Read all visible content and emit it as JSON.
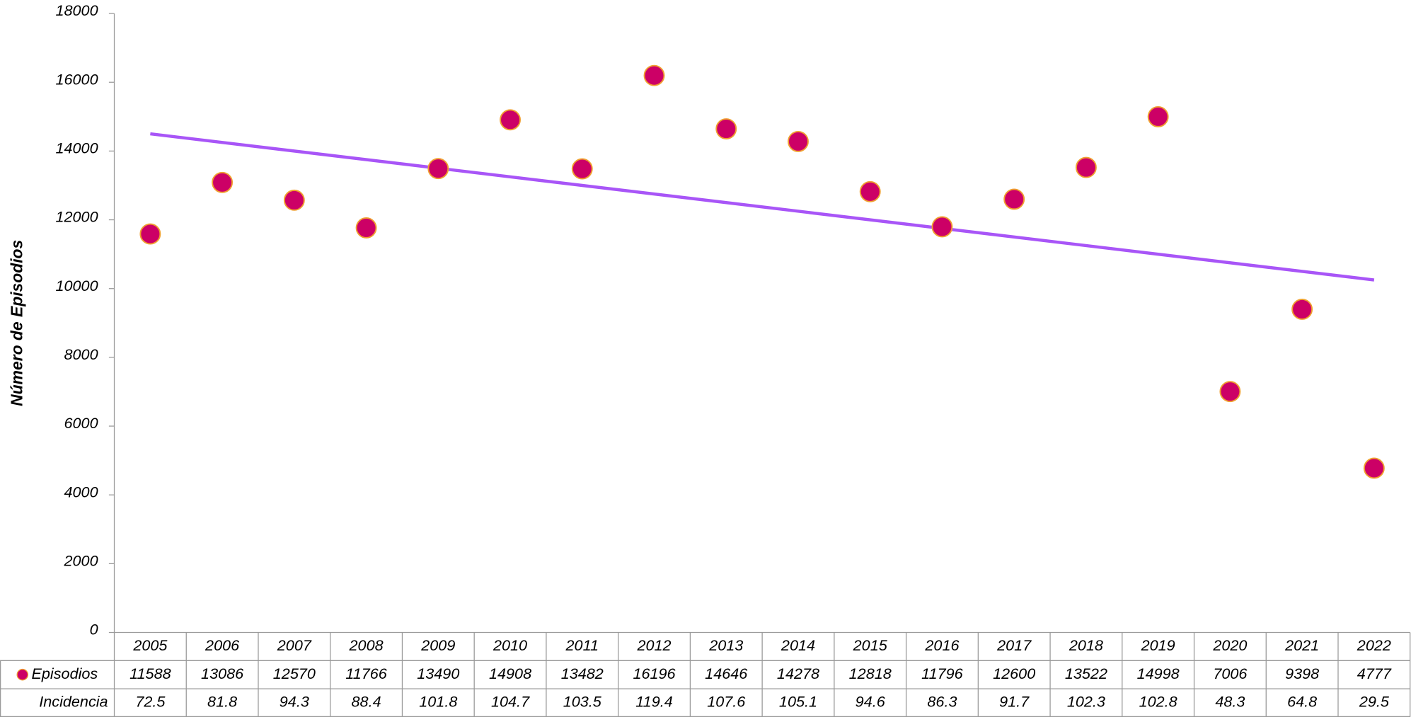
{
  "chart_data": {
    "type": "scatter",
    "y_label": "Número de Episodios",
    "categories": [
      "2005",
      "2006",
      "2007",
      "2008",
      "2009",
      "2010",
      "2011",
      "2012",
      "2013",
      "2014",
      "2015",
      "2016",
      "2017",
      "2018",
      "2019",
      "2020",
      "2021",
      "2022"
    ],
    "series": [
      {
        "name": "Episodios",
        "color": "#cc0066",
        "edge_color": "#f0a030",
        "values": [
          11588,
          13086,
          12570,
          11766,
          13490,
          14908,
          13482,
          16196,
          14646,
          14278,
          12818,
          11796,
          12600,
          13522,
          14998,
          7006,
          9398,
          4777
        ]
      }
    ],
    "table_rows": [
      {
        "name": "Incidencia",
        "values": [
          72.5,
          81.8,
          94.3,
          88.4,
          101.8,
          104.7,
          103.5,
          119.4,
          107.6,
          105.1,
          94.6,
          86.3,
          91.7,
          102.3,
          102.8,
          48.3,
          64.8,
          29.5
        ]
      }
    ],
    "trendline": {
      "color": "#a855f7",
      "start": 14500,
      "end": 10250
    },
    "ylim": [
      0,
      18000
    ],
    "yticks": [
      0,
      2000,
      4000,
      6000,
      8000,
      10000,
      12000,
      14000,
      16000,
      18000
    ]
  }
}
